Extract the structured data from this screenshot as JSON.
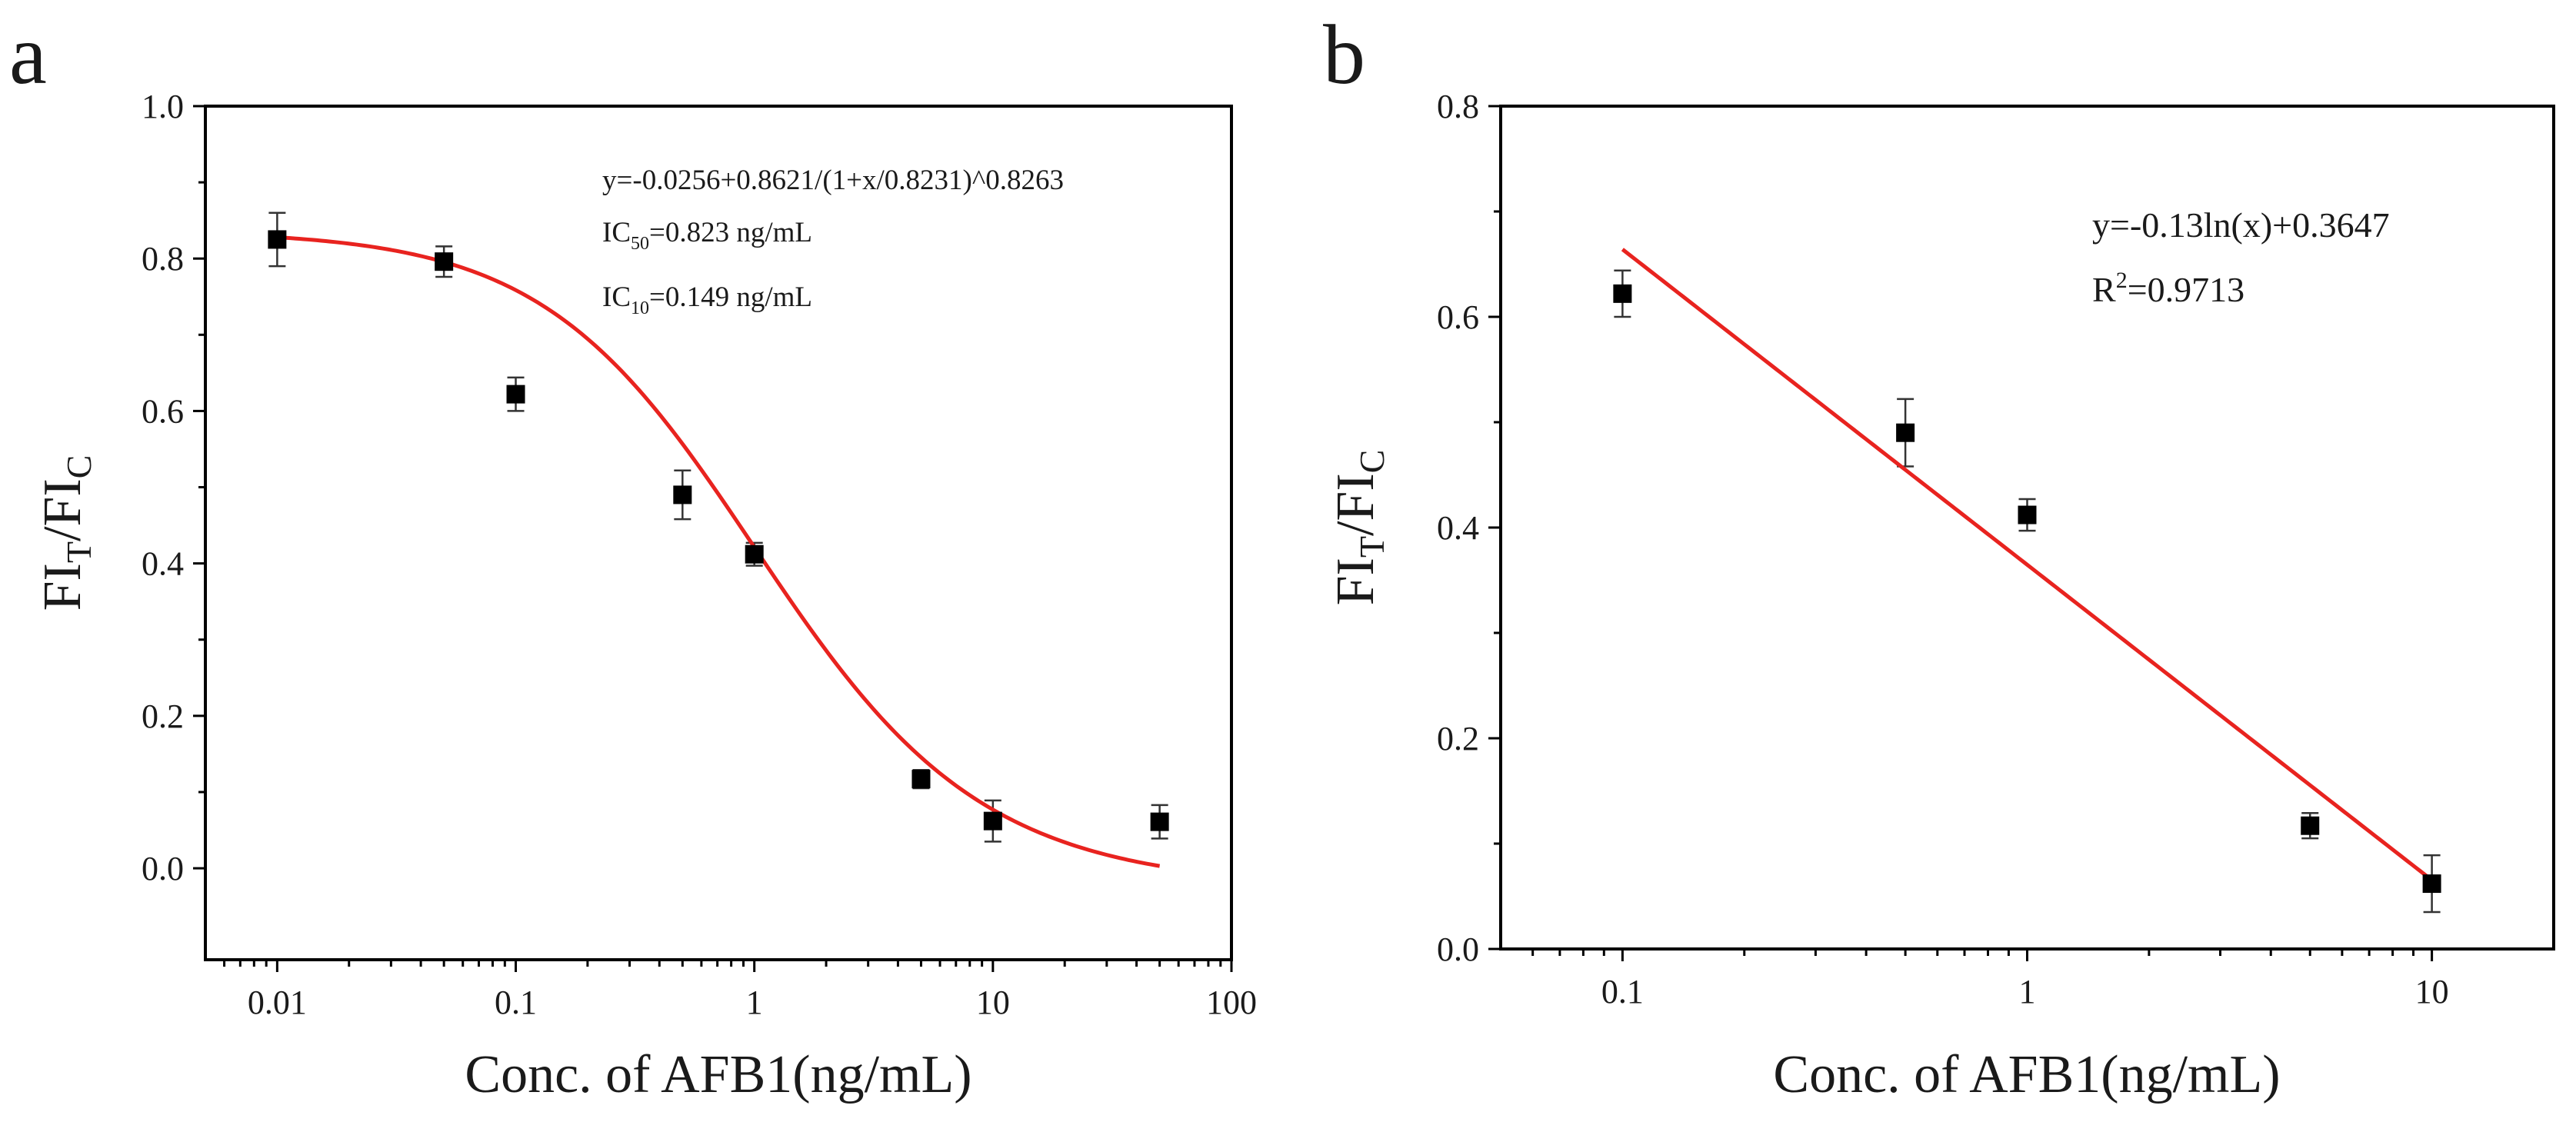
{
  "chart_data": [
    {
      "panel": "a",
      "type": "scatter",
      "xscale": "log",
      "xlabel": "Conc. of AFB1(ng/mL)",
      "ylabel": {
        "base1": "FI",
        "sub1": "T",
        "sep": "/",
        "base2": "FI",
        "sub2": "C"
      },
      "xlim": [
        0.005,
        100
      ],
      "ylim": [
        -0.12,
        1.0
      ],
      "xticks": [
        0.01,
        0.1,
        1,
        10,
        100
      ],
      "xtick_labels": [
        "0.01",
        "0.1",
        "1",
        "10",
        "100"
      ],
      "yticks": [
        0.0,
        0.2,
        0.4,
        0.6,
        0.8,
        1.0
      ],
      "ytick_labels": [
        "0.0",
        "0.2",
        "0.4",
        "0.6",
        "0.8",
        "1.0"
      ],
      "points": {
        "x": [
          0.01,
          0.05,
          0.1,
          0.5,
          1,
          5,
          10,
          50
        ],
        "y": [
          0.825,
          0.796,
          0.622,
          0.49,
          0.412,
          0.117,
          0.062,
          0.061
        ],
        "err": [
          0.035,
          0.02,
          0.022,
          0.032,
          0.015,
          0.012,
          0.027,
          0.022
        ]
      },
      "fit": {
        "type": "logistic",
        "A2": -0.0256,
        "A1": 0.8621,
        "x0": 0.8231,
        "p": 0.8263,
        "x_range": [
          0.01,
          50
        ]
      },
      "annotations": {
        "equation": "y=-0.0256+0.8621/(1+x/0.8231)^0.8263",
        "ic50": {
          "prefix": "IC",
          "sub": "50",
          "text": "=0.823 ng/mL"
        },
        "ic10": {
          "prefix": "IC",
          "sub": "10",
          "text": "=0.149 ng/mL"
        }
      }
    },
    {
      "panel": "b",
      "type": "scatter",
      "xscale": "log",
      "xlabel": "Conc. of AFB1(ng/mL)",
      "ylabel": {
        "base1": "FI",
        "sub1": "T",
        "sep": "/",
        "base2": "FI",
        "sub2": "C"
      },
      "xlim": [
        0.05,
        20
      ],
      "ylim": [
        0.0,
        0.8
      ],
      "xticks": [
        0.1,
        1,
        10
      ],
      "xtick_labels": [
        "0.1",
        "1",
        "10"
      ],
      "yticks": [
        0.0,
        0.2,
        0.4,
        0.6,
        0.8
      ],
      "ytick_labels": [
        "0.0",
        "0.2",
        "0.4",
        "0.6",
        "0.8"
      ],
      "points": {
        "x": [
          0.1,
          0.5,
          1,
          5,
          10
        ],
        "y": [
          0.622,
          0.49,
          0.412,
          0.117,
          0.062
        ],
        "err": [
          0.022,
          0.032,
          0.015,
          0.012,
          0.027
        ]
      },
      "fit": {
        "type": "log-linear",
        "slope": -0.13,
        "intercept": 0.3647,
        "x_range": [
          0.1,
          10
        ]
      },
      "annotations": {
        "equation": "y=-0.13ln(x)+0.3647",
        "r2": {
          "prefix": "R",
          "sup": "2",
          "text": "=0.9713"
        }
      }
    }
  ]
}
